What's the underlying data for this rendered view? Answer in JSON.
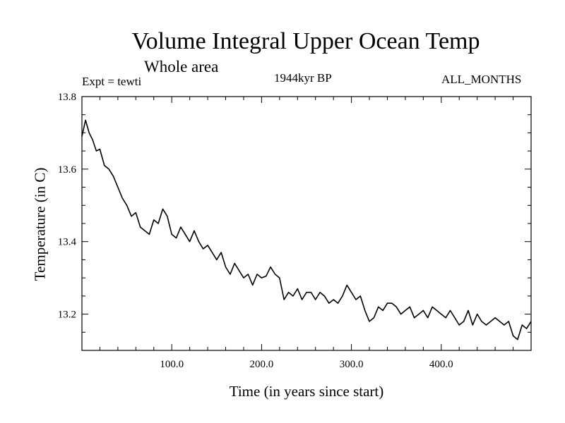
{
  "chart_data": {
    "type": "line",
    "title": "Volume Integral Upper Ocean Temp",
    "subtitle": "Whole area",
    "experiment_label": "Expt = tewti",
    "period_label": "1944kyr BP",
    "months_label": "ALL_MONTHS",
    "xlabel": "Time (in years since start)",
    "ylabel": "Temperature (in C)",
    "xlim": [
      0,
      500
    ],
    "ylim": [
      13.1,
      13.8
    ],
    "x_ticks": [
      100,
      200,
      300,
      400
    ],
    "x_tick_labels": [
      "100.0",
      "200.0",
      "300.0",
      "400.0"
    ],
    "y_ticks": [
      13.2,
      13.4,
      13.6,
      13.8
    ],
    "y_tick_labels": [
      "13.2",
      "13.4",
      "13.6",
      "13.8"
    ],
    "grid": false,
    "series": [
      {
        "name": "Temperature",
        "color": "#000000",
        "x": [
          0,
          4,
          8,
          12,
          16,
          20,
          25,
          30,
          35,
          40,
          45,
          50,
          55,
          60,
          65,
          70,
          75,
          80,
          85,
          90,
          95,
          100,
          105,
          110,
          115,
          120,
          125,
          130,
          135,
          140,
          145,
          150,
          155,
          160,
          165,
          170,
          175,
          180,
          185,
          190,
          195,
          200,
          205,
          210,
          215,
          220,
          225,
          230,
          235,
          240,
          245,
          250,
          255,
          260,
          265,
          270,
          275,
          280,
          285,
          290,
          295,
          300,
          305,
          310,
          315,
          320,
          325,
          330,
          335,
          340,
          345,
          350,
          355,
          360,
          365,
          370,
          375,
          380,
          385,
          390,
          395,
          400,
          405,
          410,
          415,
          420,
          425,
          430,
          435,
          440,
          445,
          450,
          455,
          460,
          465,
          470,
          475,
          480,
          485,
          490,
          495,
          500
        ],
        "values": [
          13.69,
          13.735,
          13.7,
          13.68,
          13.65,
          13.655,
          13.61,
          13.6,
          13.58,
          13.55,
          13.52,
          13.5,
          13.47,
          13.48,
          13.44,
          13.43,
          13.42,
          13.46,
          13.45,
          13.49,
          13.47,
          13.42,
          13.41,
          13.44,
          13.42,
          13.4,
          13.43,
          13.4,
          13.38,
          13.39,
          13.37,
          13.35,
          13.37,
          13.33,
          13.31,
          13.34,
          13.32,
          13.3,
          13.31,
          13.28,
          13.31,
          13.3,
          13.305,
          13.33,
          13.31,
          13.3,
          13.24,
          13.26,
          13.25,
          13.27,
          13.24,
          13.26,
          13.26,
          13.24,
          13.26,
          13.25,
          13.23,
          13.24,
          13.23,
          13.25,
          13.28,
          13.26,
          13.24,
          13.25,
          13.21,
          13.18,
          13.19,
          13.22,
          13.21,
          13.23,
          13.23,
          13.22,
          13.2,
          13.21,
          13.22,
          13.19,
          13.2,
          13.21,
          13.19,
          13.22,
          13.21,
          13.2,
          13.19,
          13.21,
          13.19,
          13.17,
          13.18,
          13.21,
          13.17,
          13.2,
          13.18,
          13.17,
          13.18,
          13.19,
          13.18,
          13.17,
          13.18,
          13.14,
          13.13,
          13.17,
          13.16,
          13.18
        ]
      }
    ]
  }
}
